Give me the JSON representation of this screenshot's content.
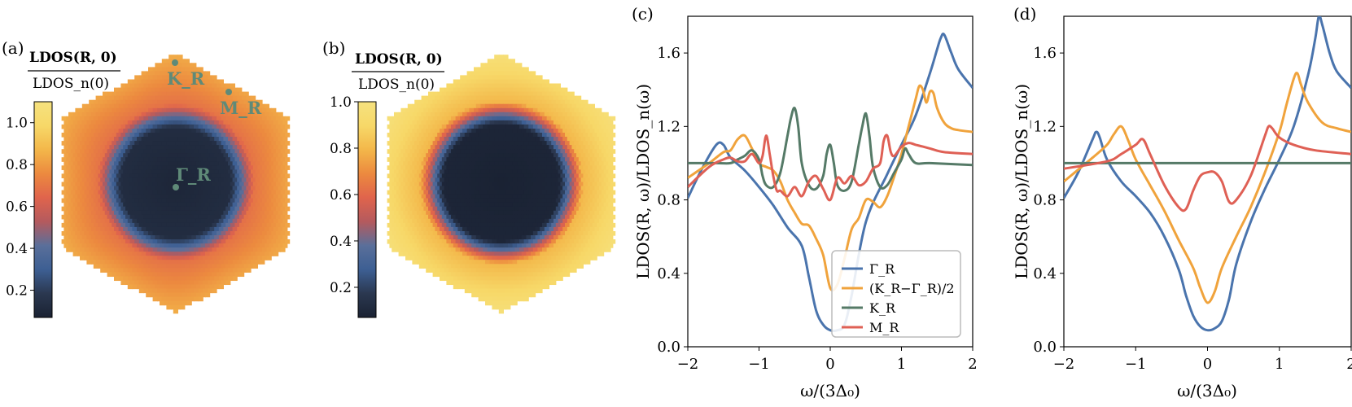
{
  "colors": {
    "gamma": "#4a74ad",
    "mid": "#f0a33c",
    "k": "#557a67",
    "m": "#df6055",
    "point": "#5f8a78",
    "cmap": [
      "#1a2233",
      "#2b3850",
      "#3d5f93",
      "#5a6f9a",
      "#b45a5e",
      "#e0644c",
      "#ec8a3f",
      "#f3b74a",
      "#f7d868",
      "#f6e27f"
    ]
  },
  "panel_a": {
    "letter": "(a)",
    "cb_title_num": "LDOS(R, 0)",
    "cb_title_den": "LDOS_n(0)",
    "cb_ticks": [
      "0.2",
      "0.4",
      "0.6",
      "0.8",
      "1.0"
    ],
    "cb_tick_values": [
      0.2,
      0.4,
      0.6,
      0.8,
      1.0
    ],
    "cb_range": [
      0.07,
      1.1
    ],
    "points": {
      "gamma": "Γ_R",
      "k": "K_R",
      "m": "M_R"
    }
  },
  "panel_b": {
    "letter": "(b)",
    "cb_title_num": "LDOS(R, 0)",
    "cb_title_den": "LDOS_n(0)",
    "cb_ticks": [
      "0.2",
      "0.4",
      "0.6",
      "0.8",
      "1.0"
    ],
    "cb_tick_values": [
      0.2,
      0.4,
      0.6,
      0.8,
      1.0
    ],
    "cb_range": [
      0.07,
      1.0
    ]
  },
  "chart_data": [
    {
      "panel": "(c)",
      "type": "line",
      "xlabel": "ω/(3Δ₀)",
      "ylabel": "LDOS(R, ω)/LDOS_n(ω)",
      "xlim": [
        -2,
        2
      ],
      "ylim": [
        0.0,
        1.8
      ],
      "xticks": [
        -2,
        -1,
        0,
        1,
        2
      ],
      "xtick_labels": [
        "−2",
        "−1",
        "0",
        "1",
        "2"
      ],
      "yticks": [
        0.0,
        0.4,
        0.8,
        1.2,
        1.6
      ],
      "ytick_labels": [
        "0.0",
        "0.4",
        "0.8",
        "1.2",
        "1.6"
      ],
      "legend_position": "lower-right",
      "series": [
        {
          "name": "Γ_R",
          "color": "#4a74ad",
          "x": [
            -2,
            -1.8,
            -1.6,
            -1.5,
            -1.4,
            -1.2,
            -1.0,
            -0.8,
            -0.6,
            -0.4,
            -0.3,
            -0.2,
            -0.1,
            0,
            0.1,
            0.2,
            0.3,
            0.5,
            0.8,
            1.0,
            1.2,
            1.4,
            1.5,
            1.55,
            1.6,
            1.7,
            1.8,
            2.0
          ],
          "y": [
            0.81,
            0.97,
            1.1,
            1.1,
            1.03,
            0.96,
            0.87,
            0.77,
            0.65,
            0.55,
            0.38,
            0.2,
            0.12,
            0.09,
            0.09,
            0.12,
            0.28,
            0.68,
            0.94,
            1.1,
            1.26,
            1.49,
            1.62,
            1.68,
            1.7,
            1.6,
            1.51,
            1.41
          ]
        },
        {
          "name": "(K_R−Γ_R)/2",
          "color": "#f0a33c",
          "x": [
            -2,
            -1.7,
            -1.5,
            -1.4,
            -1.3,
            -1.2,
            -1.1,
            -1.0,
            -0.9,
            -0.8,
            -0.7,
            -0.6,
            -0.5,
            -0.4,
            -0.3,
            -0.2,
            -0.1,
            0,
            0.1,
            0.2,
            0.3,
            0.4,
            0.5,
            0.6,
            0.7,
            0.8,
            0.9,
            1.0,
            1.1,
            1.2,
            1.25,
            1.3,
            1.35,
            1.4,
            1.45,
            1.5,
            1.6,
            1.7,
            1.8,
            2.0
          ],
          "y": [
            0.92,
            1.0,
            1.06,
            1.07,
            1.13,
            1.15,
            1.08,
            1.0,
            0.98,
            0.96,
            0.9,
            0.8,
            0.73,
            0.67,
            0.66,
            0.59,
            0.5,
            0.32,
            0.34,
            0.48,
            0.64,
            0.7,
            0.8,
            0.79,
            0.76,
            0.82,
            0.93,
            1.05,
            1.2,
            1.35,
            1.42,
            1.4,
            1.33,
            1.39,
            1.38,
            1.3,
            1.22,
            1.19,
            1.18,
            1.17
          ]
        },
        {
          "name": "K_R",
          "color": "#557a67",
          "x": [
            -2,
            -1.6,
            -1.4,
            -1.3,
            -1.2,
            -1.1,
            -1.0,
            -0.95,
            -0.9,
            -0.8,
            -0.7,
            -0.6,
            -0.55,
            -0.5,
            -0.45,
            -0.4,
            -0.3,
            -0.2,
            -0.1,
            -0.05,
            0,
            0.05,
            0.1,
            0.2,
            0.3,
            0.4,
            0.45,
            0.5,
            0.55,
            0.6,
            0.7,
            0.8,
            0.9,
            1.0,
            1.05,
            1.1,
            1.2,
            1.4,
            2.0
          ],
          "y": [
            1.0,
            1.0,
            1.0,
            1.02,
            1.04,
            1.07,
            1.02,
            0.93,
            0.88,
            0.87,
            0.95,
            1.15,
            1.25,
            1.3,
            1.2,
            1.0,
            0.88,
            0.86,
            0.93,
            1.05,
            1.1,
            1.0,
            0.88,
            0.85,
            0.9,
            1.1,
            1.2,
            1.27,
            1.15,
            0.98,
            0.87,
            0.88,
            0.95,
            1.02,
            1.08,
            1.05,
            1.0,
            1.0,
            0.99
          ]
        },
        {
          "name": "M_R",
          "color": "#df6055",
          "x": [
            -2,
            -1.7,
            -1.5,
            -1.4,
            -1.3,
            -1.2,
            -1.1,
            -1.0,
            -0.95,
            -0.9,
            -0.85,
            -0.8,
            -0.75,
            -0.7,
            -0.6,
            -0.5,
            -0.4,
            -0.3,
            -0.2,
            -0.1,
            0,
            0.1,
            0.2,
            0.3,
            0.4,
            0.5,
            0.6,
            0.7,
            0.75,
            0.8,
            0.85,
            0.9,
            1.0,
            1.1,
            1.2,
            1.3,
            1.4,
            1.6,
            2.0
          ],
          "y": [
            0.87,
            0.98,
            1.02,
            1.03,
            1.01,
            1.01,
            1.05,
            1.0,
            1.04,
            1.15,
            1.05,
            0.93,
            0.85,
            0.85,
            0.82,
            0.87,
            0.82,
            0.9,
            0.93,
            0.86,
            0.8,
            0.92,
            0.89,
            0.93,
            0.88,
            0.9,
            0.97,
            1.0,
            1.12,
            1.15,
            1.06,
            1.04,
            1.09,
            1.11,
            1.1,
            1.09,
            1.08,
            1.06,
            1.05
          ]
        }
      ],
      "legend": [
        "Γ_R",
        "(K_R−Γ_R)/2",
        "K_R",
        "M_R"
      ]
    },
    {
      "panel": "(d)",
      "type": "line",
      "xlabel": "ω/(3Δ₀)",
      "ylabel": "LDOS(R, ω)/LDOS_n(ω)",
      "xlim": [
        -2,
        2
      ],
      "ylim": [
        0.0,
        1.8
      ],
      "xticks": [
        -2,
        -1,
        0,
        1,
        2
      ],
      "xtick_labels": [
        "−2",
        "−1",
        "0",
        "1",
        "2"
      ],
      "yticks": [
        0.0,
        0.4,
        0.8,
        1.2,
        1.6
      ],
      "ytick_labels": [
        "0.0",
        "0.4",
        "0.8",
        "1.2",
        "1.6"
      ],
      "series": [
        {
          "color": "#4a74ad",
          "x": [
            -2,
            -1.8,
            -1.6,
            -1.55,
            -1.5,
            -1.4,
            -1.2,
            -1.0,
            -0.8,
            -0.6,
            -0.4,
            -0.3,
            -0.2,
            -0.1,
            0,
            0.1,
            0.2,
            0.3,
            0.4,
            0.6,
            0.8,
            1.0,
            1.2,
            1.4,
            1.5,
            1.55,
            1.6,
            1.7,
            1.8,
            2.0
          ],
          "y": [
            0.81,
            0.95,
            1.13,
            1.17,
            1.14,
            1.02,
            0.9,
            0.82,
            0.73,
            0.6,
            0.42,
            0.28,
            0.17,
            0.11,
            0.09,
            0.1,
            0.14,
            0.26,
            0.45,
            0.68,
            0.86,
            1.02,
            1.2,
            1.48,
            1.68,
            1.8,
            1.75,
            1.6,
            1.5,
            1.41
          ]
        },
        {
          "color": "#f0a33c",
          "x": [
            -2,
            -1.6,
            -1.4,
            -1.3,
            -1.2,
            -1.1,
            -1.0,
            -0.8,
            -0.6,
            -0.4,
            -0.2,
            -0.1,
            0,
            0.1,
            0.2,
            0.4,
            0.6,
            0.8,
            1.0,
            1.1,
            1.2,
            1.25,
            1.3,
            1.4,
            1.6,
            1.8,
            2.0
          ],
          "y": [
            0.9,
            1.03,
            1.1,
            1.16,
            1.2,
            1.12,
            1.02,
            0.88,
            0.74,
            0.58,
            0.43,
            0.32,
            0.24,
            0.3,
            0.43,
            0.6,
            0.76,
            0.95,
            1.17,
            1.32,
            1.46,
            1.49,
            1.43,
            1.33,
            1.22,
            1.19,
            1.17
          ]
        },
        {
          "color": "#557a67",
          "x": [
            -2,
            2
          ],
          "y": [
            1.0,
            1.0
          ]
        },
        {
          "color": "#df6055",
          "x": [
            -2,
            -1.4,
            -1.2,
            -1.0,
            -0.9,
            -0.8,
            -0.6,
            -0.4,
            -0.3,
            -0.2,
            -0.1,
            0,
            0.1,
            0.2,
            0.3,
            0.4,
            0.6,
            0.8,
            0.85,
            0.9,
            1.0,
            1.2,
            1.5,
            2.0
          ],
          "y": [
            0.97,
            1.01,
            1.05,
            1.1,
            1.13,
            1.05,
            0.88,
            0.76,
            0.75,
            0.85,
            0.93,
            0.95,
            0.95,
            0.9,
            0.79,
            0.8,
            0.93,
            1.15,
            1.2,
            1.19,
            1.14,
            1.1,
            1.07,
            1.05
          ]
        }
      ]
    }
  ]
}
